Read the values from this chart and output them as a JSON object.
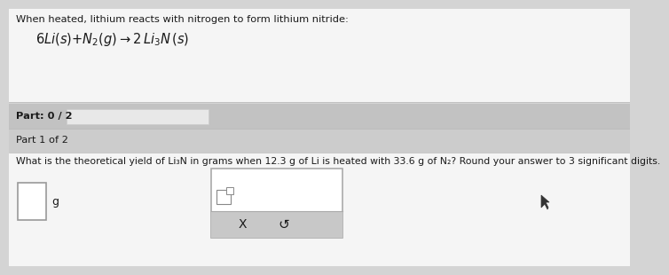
{
  "bg_color": "#d4d4d4",
  "white_color": "#f5f5f5",
  "pure_white": "#ffffff",
  "part_bar_color": "#c2c2c2",
  "part1_bar_color": "#cccccc",
  "text_color": "#1a1a1a",
  "intro_text": "When heated, lithium reacts with nitrogen to form lithium nitride:",
  "part_label": "Part: 0 / 2",
  "part1_label": "Part 1 of 2",
  "question": "What is the theoretical yield of Li₃N in grams when 12.3 g of Li is heated with 33.6 g of N₂? Round your answer to 3 significant digits.",
  "input_label": "g",
  "x_symbol": "X",
  "undo_symbol": "↺",
  "progress_bar_color": "#e8e8e8",
  "popup_gray": "#c8c8c8",
  "popup_border": "#aaaaaa",
  "input_border": "#999999"
}
